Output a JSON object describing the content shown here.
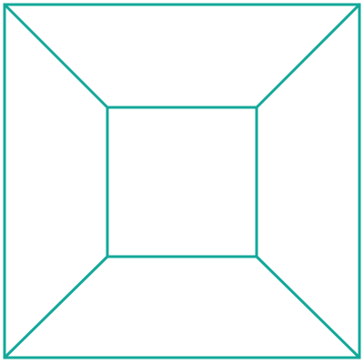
{
  "diagram": {
    "shape": "square-frustum-top-view",
    "stroke_color": "#13A89A",
    "background_color": "#FFFFFF",
    "parts": [
      "outer-square",
      "inner-square",
      "corner-edges"
    ]
  }
}
